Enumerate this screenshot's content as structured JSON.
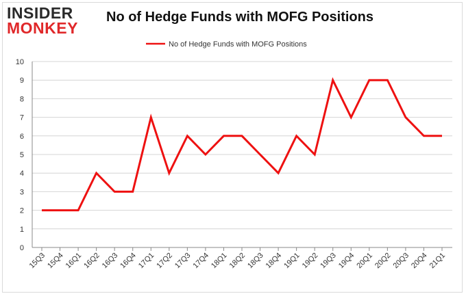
{
  "logo": {
    "line1": "INSIDER",
    "line2": "MONKEY"
  },
  "chart_data": {
    "type": "line",
    "title": "No of Hedge Funds with MOFG Positions",
    "xlabel": "",
    "ylabel": "",
    "ylim": [
      0,
      10
    ],
    "yticks": [
      0,
      1,
      2,
      3,
      4,
      5,
      6,
      7,
      8,
      9,
      10
    ],
    "grid": true,
    "legend_position": "top-center",
    "colors": {
      "line": "#ee1111",
      "grid": "#d4d4d4",
      "axis": "#888888"
    },
    "categories": [
      "15Q3",
      "15Q4",
      "16Q1",
      "16Q2",
      "16Q3",
      "16Q4",
      "17Q1",
      "17Q2",
      "17Q3",
      "17Q4",
      "18Q1",
      "18Q2",
      "18Q3",
      "18Q4",
      "19Q1",
      "19Q2",
      "19Q3",
      "19Q4",
      "20Q1",
      "20Q2",
      "20Q3",
      "20Q4",
      "21Q1"
    ],
    "series": [
      {
        "name": "No of Hedge Funds with MOFG Positions",
        "values": [
          2,
          2,
          2,
          4,
          3,
          3,
          7,
          4,
          6,
          5,
          6,
          6,
          5,
          4,
          6,
          5,
          9,
          7,
          9,
          9,
          7,
          6,
          6
        ]
      }
    ]
  }
}
